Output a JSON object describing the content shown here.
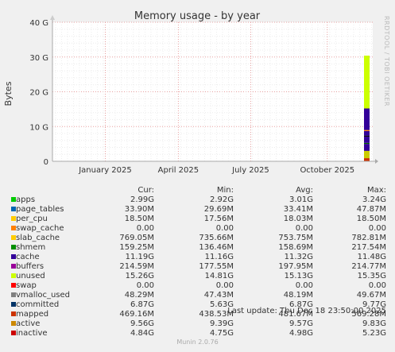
{
  "chart_data": {
    "type": "area",
    "title": "Memory usage - by year",
    "ylabel": "Bytes",
    "ylim": [
      0,
      40
    ],
    "y_ticks": [
      "0",
      "10 G",
      "20 G",
      "30 G",
      "40 G"
    ],
    "x_ticks": [
      "January 2025",
      "April 2025",
      "July 2025",
      "October 2025"
    ],
    "x_tick_fractions": [
      0.165,
      0.393,
      0.619,
      0.858
    ],
    "grid": true,
    "series": [
      {
        "name": "apps",
        "color": "#00cc00",
        "values": [
          2.99
        ]
      },
      {
        "name": "page_tables",
        "color": "#0066b3",
        "values": [
          0.0339
        ]
      },
      {
        "name": "per_cpu",
        "color": "#ff8000",
        "values": [
          0.0185
        ]
      },
      {
        "name": "swap_cache",
        "color": "#ffcc00",
        "values": [
          0
        ]
      },
      {
        "name": "slab_cache",
        "color": "#330099",
        "values": [
          0.769
        ]
      },
      {
        "name": "shmem",
        "color": "#990099",
        "values": [
          0.159
        ]
      },
      {
        "name": "cache",
        "color": "#ccff00",
        "values": [
          11.19
        ]
      },
      {
        "name": "buffers",
        "color": "#ff0000",
        "values": [
          0.2146
        ]
      },
      {
        "name": "unused",
        "color": "#808080",
        "values": [
          15.26
        ]
      }
    ],
    "recent_bar_stack": [
      {
        "color": "#cc3300",
        "value": 0.9
      },
      {
        "color": "#cccc00",
        "value": 2.1
      },
      {
        "color": "#330099",
        "value": 2.0
      },
      {
        "color": "#006600",
        "value": 0.3
      },
      {
        "color": "#330099",
        "value": 1.8
      },
      {
        "color": "#000000",
        "value": 0.3
      },
      {
        "color": "#330099",
        "value": 1.3
      },
      {
        "color": "#ff8000",
        "value": 0.3
      },
      {
        "color": "#330099",
        "value": 6.2
      },
      {
        "color": "#ccff00",
        "value": 15.2
      }
    ]
  },
  "credit_vertical": "RRDTOOL / TOBI OETIKER",
  "legend": {
    "headers": [
      "Cur:",
      "Min:",
      "Avg:",
      "Max:"
    ],
    "rows": [
      {
        "label": "apps",
        "color": "#00cc00",
        "cur": "2.99G",
        "min": "2.92G",
        "avg": "3.01G",
        "max": "3.24G"
      },
      {
        "label": "page_tables",
        "color": "#0066b3",
        "cur": "33.90M",
        "min": "29.69M",
        "avg": "33.41M",
        "max": "47.87M"
      },
      {
        "label": "per_cpu",
        "color": "#ffcc00",
        "cur": "18.50M",
        "min": "17.56M",
        "avg": "18.03M",
        "max": "18.50M"
      },
      {
        "label": "swap_cache",
        "color": "#ff8000",
        "cur": "0.00",
        "min": "0.00",
        "avg": "0.00",
        "max": "0.00"
      },
      {
        "label": "slab_cache",
        "color": "#ffcc00",
        "cur": "769.05M",
        "min": "735.66M",
        "avg": "753.75M",
        "max": "782.81M"
      },
      {
        "label": "shmem",
        "color": "#008f00",
        "cur": "159.25M",
        "min": "136.46M",
        "avg": "158.69M",
        "max": "217.54M"
      },
      {
        "label": "cache",
        "color": "#330099",
        "cur": "11.19G",
        "min": "11.16G",
        "avg": "11.32G",
        "max": "11.48G"
      },
      {
        "label": "buffers",
        "color": "#990099",
        "cur": "214.59M",
        "min": "177.55M",
        "avg": "197.95M",
        "max": "214.77M"
      },
      {
        "label": "unused",
        "color": "#ccff00",
        "cur": "15.26G",
        "min": "14.81G",
        "avg": "15.13G",
        "max": "15.35G"
      },
      {
        "label": "swap",
        "color": "#ff0000",
        "cur": "0.00",
        "min": "0.00",
        "avg": "0.00",
        "max": "0.00"
      },
      {
        "label": "vmalloc_used",
        "color": "#808080",
        "cur": "48.29M",
        "min": "47.43M",
        "avg": "48.19M",
        "max": "49.67M"
      },
      {
        "label": "committed",
        "color": "#003366",
        "cur": "6.87G",
        "min": "5.63G",
        "avg": "6.87G",
        "max": "9.77G"
      },
      {
        "label": "mapped",
        "color": "#cc3300",
        "cur": "469.16M",
        "min": "438.53M",
        "avg": "481.67M",
        "max": "569.28M"
      },
      {
        "label": "active",
        "color": "#cc8800",
        "cur": "9.56G",
        "min": "9.39G",
        "avg": "9.57G",
        "max": "9.83G"
      },
      {
        "label": "inactive",
        "color": "#cc0000",
        "cur": "4.84G",
        "min": "4.75G",
        "avg": "4.98G",
        "max": "5.23G"
      }
    ]
  },
  "last_update": "Last update: Thu Dec 18 23:50:00 2025",
  "footer": "Munin 2.0.76"
}
